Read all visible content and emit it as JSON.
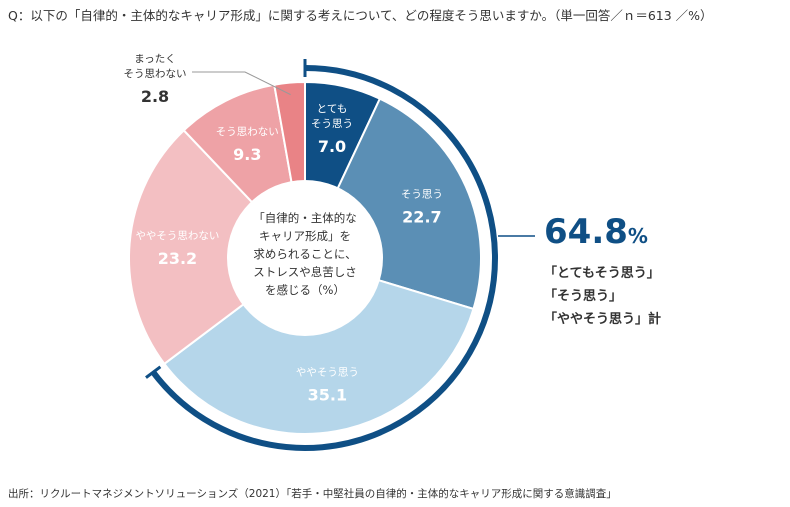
{
  "question": "Q：以下の「自律的・主体的なキャリア形成」に関する考えについて、どの程度そう思いますか。（単一回答／ｎ＝613 ／%）",
  "source": "出所：リクルートマネジメントソリューションズ（2021）「若手・中堅社員の自律的・主体的なキャリア形成に関する意識調査」",
  "chart_data": {
    "type": "pie",
    "style": "donut",
    "unit": "%",
    "center_label": [
      "「自律的・主体的な",
      "キャリア形成」を",
      "求められることに、",
      "ストレスや息苦しさ",
      "を感じる（%）"
    ],
    "slices": [
      {
        "label": [
          "とても",
          "そう思う"
        ],
        "value": 7.0,
        "value_text": "7.0",
        "color": "#0f4f85",
        "text_color": "#ffffff"
      },
      {
        "label": [
          "そう思う"
        ],
        "value": 22.7,
        "value_text": "22.7",
        "color": "#5b8fb5",
        "text_color": "#ffffff"
      },
      {
        "label": [
          "ややそう思う"
        ],
        "value": 35.1,
        "value_text": "35.1",
        "color": "#b5d6ea",
        "text_color": "#ffffff"
      },
      {
        "label": [
          "ややそう思わない"
        ],
        "value": 23.2,
        "value_text": "23.2",
        "color": "#f3bfc2",
        "text_color": "#ffffff"
      },
      {
        "label": [
          "そう思わない"
        ],
        "value": 9.3,
        "value_text": "9.3",
        "color": "#eea2a6",
        "text_color": "#ffffff"
      },
      {
        "label": [
          "まったく",
          "そう思わない"
        ],
        "value": 2.8,
        "value_text": "2.8",
        "color": "#e98386",
        "text_color": "#333333",
        "outside": true
      }
    ],
    "total": {
      "value_text": "64.8",
      "unit": "%",
      "lines": [
        "「とてもそう思う」",
        "「そう思う」",
        "「ややそう思う」計"
      ],
      "color": "#0f4f85"
    }
  }
}
